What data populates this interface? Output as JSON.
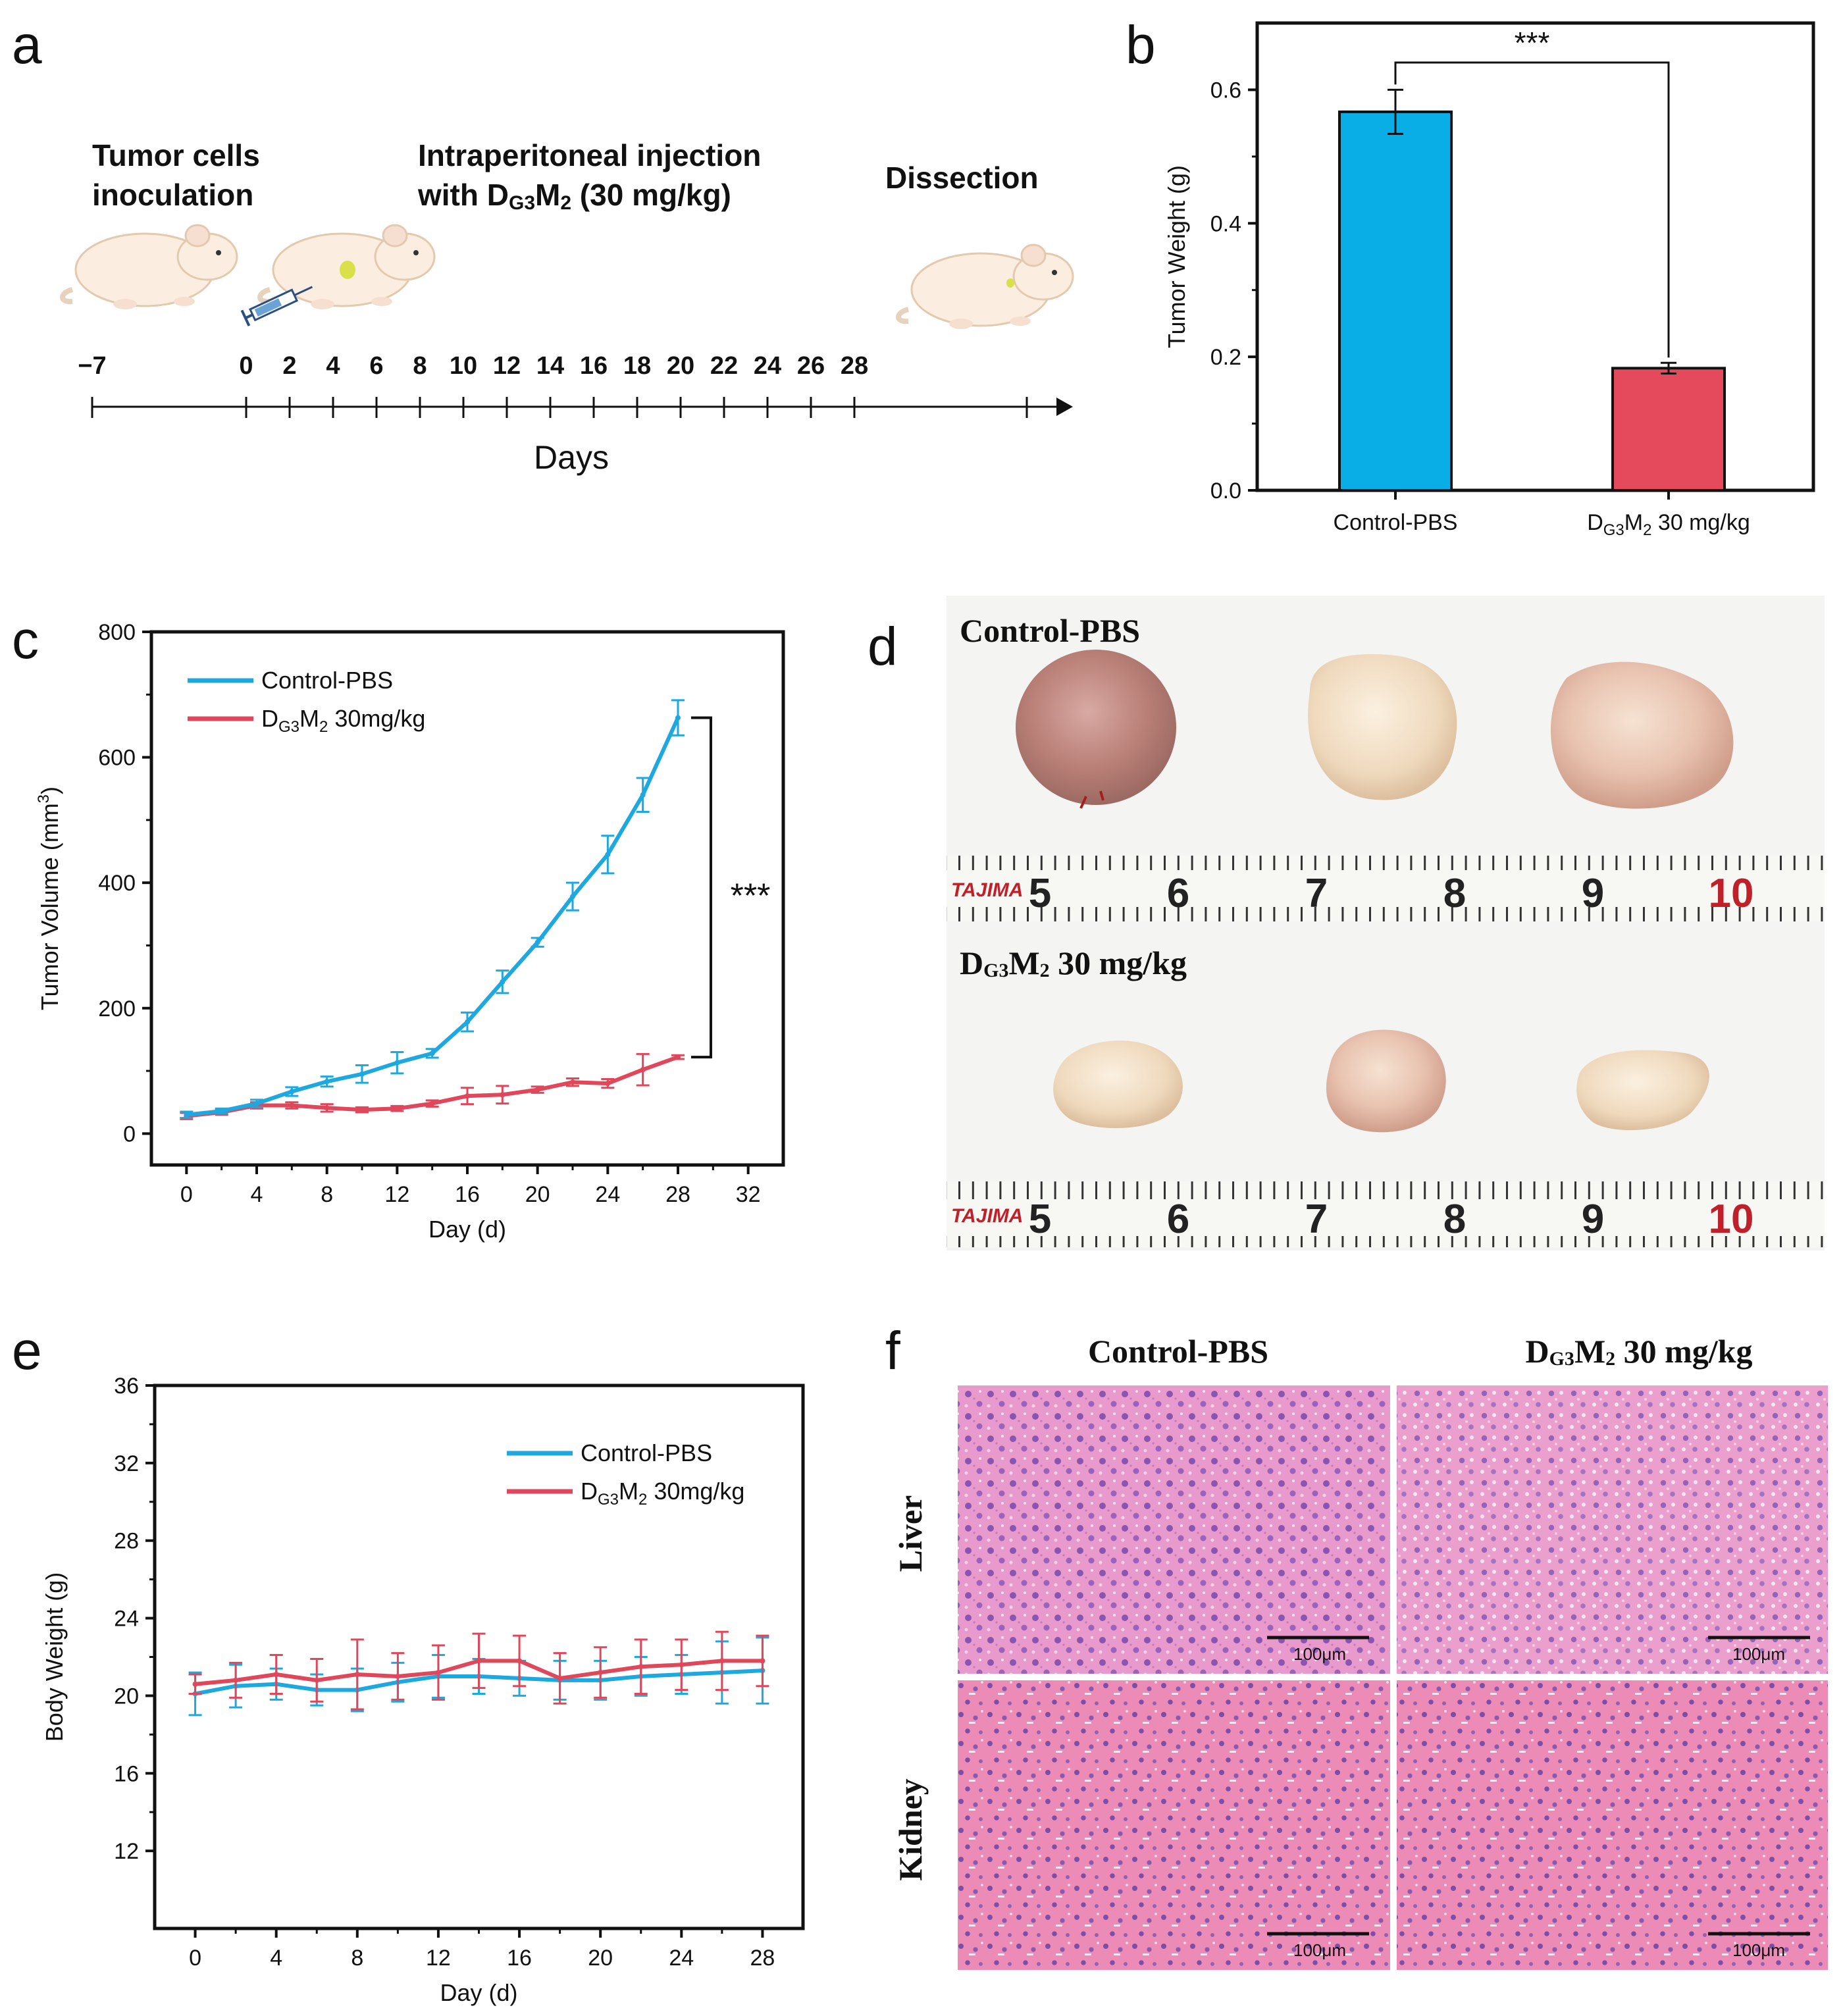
{
  "colors": {
    "control": "#1ea8e0",
    "treated": "#e0475a",
    "bar_control": "#0aaee6",
    "bar_treated": "#e54a5c",
    "he_pink": "#e58fc0",
    "he_nuclei": "#7a4aa6",
    "tumor_cream": "#f1dcc3",
    "tumor_red": "#c98f8a"
  },
  "panel_a": {
    "label": "a",
    "phase1_line1": "Tumor cells",
    "phase1_line2": "inoculation",
    "phase2_line1": "Intraperitoneal injection",
    "phase2_line2": "with D",
    "phase2_sub": "G3",
    "phase2_mid": "M",
    "phase2_sub2": "2",
    "phase2_tail": " (30 mg/kg)",
    "phase3": "Dissection",
    "axis_label": "Days",
    "ticks": [
      "−7",
      "0",
      "2",
      "4",
      "6",
      "8",
      "10",
      "12",
      "14",
      "16",
      "18",
      "20",
      "22",
      "24",
      "26",
      "28"
    ]
  },
  "panel_b": {
    "label": "b",
    "significance": "***"
  },
  "panel_c": {
    "label": "c",
    "significance": "***"
  },
  "panel_d": {
    "label": "d",
    "title_control": "Control-PBS",
    "title_treated_main": "D",
    "title_treated_sub": "G3",
    "title_treated_mid": "M",
    "title_treated_sub2": "2",
    "title_treated_tail": " 30 mg/kg",
    "ruler_brand": "TAJIMA",
    "ruler_numbers": [
      "5",
      "6",
      "7",
      "8",
      "9",
      "10"
    ]
  },
  "panel_e": {
    "label": "e"
  },
  "panel_f": {
    "label": "f",
    "col1": "Control-PBS",
    "col2_main": "D",
    "col2_sub": "G3",
    "col2_mid": "M",
    "col2_sub2": "2",
    "col2_tail": " 30 mg/kg",
    "row1": "Liver",
    "row2": "Kidney",
    "scale_label": "100μm"
  },
  "chart_data": [
    {
      "id": "b",
      "type": "bar",
      "categories": [
        "Control-PBS",
        "DG3M2 30 mg/kg"
      ],
      "category_labels": [
        {
          "main": "Control-PBS"
        },
        {
          "main": "D",
          "sub": "G3",
          "mid": "M",
          "sub2": "2",
          "tail": " 30 mg/kg"
        }
      ],
      "values": [
        0.567,
        0.183
      ],
      "errors": [
        0.033,
        0.008
      ],
      "title": "",
      "xlabel": "",
      "ylabel": "Tumor Weight (g)",
      "ylim": [
        0.0,
        0.7
      ],
      "yticks": [
        0.0,
        0.2,
        0.4,
        0.6
      ],
      "ytick_labels": [
        "0.0",
        "0.2",
        "0.4",
        "0.6"
      ],
      "annotation": "***"
    },
    {
      "id": "c",
      "type": "line",
      "x": [
        0,
        2,
        4,
        6,
        8,
        10,
        12,
        14,
        16,
        18,
        20,
        22,
        24,
        26,
        28
      ],
      "series": [
        {
          "name": "Control-PBS",
          "values": [
            30,
            36,
            48,
            67,
            83,
            95,
            113,
            128,
            178,
            242,
            305,
            378,
            445,
            540,
            663
          ],
          "errors": [
            5,
            4,
            6,
            7,
            8,
            14,
            17,
            7,
            15,
            18,
            7,
            22,
            30,
            27,
            28
          ]
        },
        {
          "name": "DG3M2 30mg/kg",
          "values": [
            28,
            34,
            45,
            45,
            41,
            38,
            40,
            48,
            60,
            62,
            70,
            82,
            80,
            102,
            122
          ],
          "errors": [
            5,
            4,
            5,
            5,
            6,
            4,
            4,
            5,
            13,
            14,
            5,
            6,
            7,
            25,
            3
          ]
        }
      ],
      "legend_labels": [
        {
          "main": "Control-PBS"
        },
        {
          "main": "D",
          "sub": "G3",
          "mid": "M",
          "sub2": "2",
          "tail": " 30mg/kg"
        }
      ],
      "title": "",
      "xlabel": "Day (d)",
      "ylabel_main": "Tumor Volume (mm",
      "ylabel_sup": "3",
      "ylabel_tail": ")",
      "xlim": [
        -2,
        34
      ],
      "ylim": [
        -50,
        800
      ],
      "xticks": [
        0,
        4,
        8,
        12,
        16,
        20,
        24,
        28,
        32
      ],
      "yticks": [
        0,
        200,
        400,
        600,
        800
      ],
      "legend_position": "top-left",
      "annotation": "***"
    },
    {
      "id": "e",
      "type": "line",
      "x": [
        0,
        2,
        4,
        6,
        8,
        10,
        12,
        14,
        16,
        18,
        20,
        22,
        24,
        26,
        28
      ],
      "series": [
        {
          "name": "Control-PBS",
          "values": [
            20.1,
            20.5,
            20.6,
            20.3,
            20.3,
            20.7,
            21.0,
            21.0,
            20.9,
            20.8,
            20.8,
            21.0,
            21.1,
            21.2,
            21.3
          ],
          "errors": [
            1.1,
            1.1,
            0.8,
            0.8,
            1.1,
            1.0,
            1.1,
            0.9,
            0.9,
            1.0,
            1.0,
            1.0,
            1.0,
            1.6,
            1.7
          ]
        },
        {
          "name": "DG3M2 30mg/kg",
          "values": [
            20.6,
            20.8,
            21.1,
            20.8,
            21.1,
            21.0,
            21.2,
            21.8,
            21.8,
            20.9,
            21.2,
            21.5,
            21.6,
            21.8,
            21.8
          ],
          "errors": [
            0.5,
            0.9,
            1.0,
            1.1,
            1.8,
            1.2,
            1.4,
            1.4,
            1.3,
            1.3,
            1.3,
            1.4,
            1.3,
            1.5,
            1.3
          ]
        }
      ],
      "legend_labels": [
        {
          "main": "Control-PBS"
        },
        {
          "main": "D",
          "sub": "G3",
          "mid": "M",
          "sub2": "2",
          "tail": " 30mg/kg"
        }
      ],
      "title": "",
      "xlabel": "Day (d)",
      "ylabel": "Body Weight (g)",
      "xlim": [
        -2,
        30
      ],
      "ylim": [
        8,
        36
      ],
      "xticks": [
        0,
        4,
        8,
        12,
        16,
        20,
        24,
        28
      ],
      "yticks": [
        12,
        16,
        20,
        24,
        28,
        32,
        36
      ],
      "legend_position": "top-right"
    }
  ]
}
